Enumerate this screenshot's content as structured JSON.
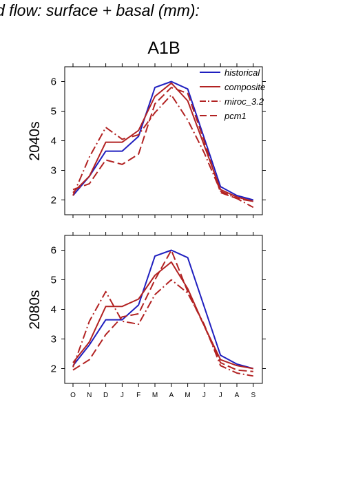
{
  "page": {
    "title": "d flow: surface + basal (mm):",
    "figure_title": "A1B"
  },
  "chart_data": {
    "type": "line",
    "title": "A1B",
    "categories": [
      "O",
      "N",
      "D",
      "J",
      "F",
      "M",
      "A",
      "M",
      "J",
      "J",
      "A",
      "S"
    ],
    "ylim": [
      1.5,
      6.5
    ],
    "yticks": [
      2,
      3,
      4,
      5,
      6
    ],
    "grid": false,
    "legend": {
      "placement": "top-right",
      "entries": [
        "historical",
        "composite",
        "miroc_3.2",
        "pcm1"
      ]
    },
    "colors": {
      "historical": "#1f1fbf",
      "composite": "#b22222",
      "miroc_3.2": "#b22222",
      "pcm1": "#b22222"
    },
    "panels": [
      {
        "ylabel": "2040s",
        "series": [
          {
            "name": "historical",
            "values": [
              2.15,
              2.8,
              3.65,
              3.65,
              4.15,
              5.8,
              6.0,
              5.75,
              4.1,
              2.45,
              2.15,
              2.0
            ]
          },
          {
            "name": "composite",
            "values": [
              2.25,
              2.8,
              3.95,
              3.95,
              4.35,
              5.5,
              5.95,
              5.35,
              3.85,
              2.35,
              2.1,
              1.95
            ]
          },
          {
            "name": "miroc_3.2",
            "values": [
              2.15,
              3.45,
              4.45,
              4.05,
              4.2,
              4.95,
              5.55,
              4.7,
              3.6,
              2.3,
              2.05,
              1.75
            ]
          },
          {
            "name": "pcm1",
            "values": [
              2.35,
              2.55,
              3.35,
              3.2,
              3.55,
              5.25,
              5.8,
              5.6,
              4.0,
              2.25,
              2.05,
              1.95
            ]
          }
        ]
      },
      {
        "ylabel": "2080s",
        "series": [
          {
            "name": "historical",
            "values": [
              2.1,
              2.8,
              3.65,
              3.65,
              4.15,
              5.8,
              6.0,
              5.75,
              4.1,
              2.45,
              2.15,
              2.0
            ]
          },
          {
            "name": "composite",
            "values": [
              2.2,
              2.9,
              4.1,
              4.1,
              4.35,
              5.15,
              5.6,
              4.7,
              3.45,
              2.3,
              2.1,
              2.0
            ]
          },
          {
            "name": "miroc_3.2",
            "values": [
              2.05,
              3.6,
              4.6,
              3.6,
              3.5,
              4.5,
              5.0,
              4.55,
              3.5,
              2.1,
              1.85,
              1.75
            ]
          },
          {
            "name": "pcm1",
            "values": [
              1.95,
              2.3,
              3.15,
              3.75,
              3.85,
              5.0,
              6.0,
              4.6,
              3.45,
              2.2,
              1.95,
              1.9
            ]
          }
        ]
      }
    ]
  }
}
